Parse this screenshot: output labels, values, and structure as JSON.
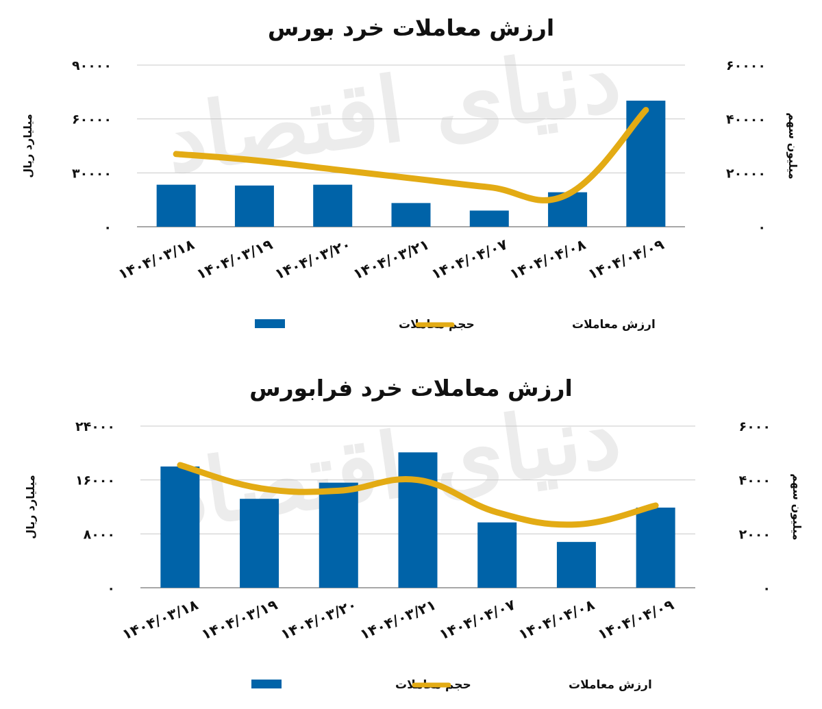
{
  "watermark": "دنیای اقتصاد",
  "chart_data": [
    {
      "type": "bar",
      "title": "ارزش معاملات خرد بورس",
      "categories": [
        "1404/03/18",
        "1404/03/19",
        "1404/03/20",
        "1404/03/21",
        "1404/04/07",
        "1404/04/08",
        "1404/04/09"
      ],
      "category_labels": [
        "۱۴۰۴/۰۳/۱۸",
        "۱۴۰۴/۰۳/۱۹",
        "۱۴۰۴/۰۳/۲۰",
        "۱۴۰۴/۰۳/۲۱",
        "۱۴۰۴/۰۴/۰۷",
        "۱۴۰۴/۰۴/۰۸",
        "۱۴۰۴/۰۴/۰۹"
      ],
      "series": [
        {
          "name": "حجم معاملات",
          "type": "bar",
          "axis": "right",
          "color": "#0063a8",
          "values": [
            15600,
            15300,
            15600,
            8800,
            6000,
            12800,
            46800
          ]
        },
        {
          "name": "ارزش معاملات",
          "type": "line",
          "smooth": true,
          "axis": "left",
          "color": "#e3ab14",
          "values": [
            40500,
            37000,
            32000,
            27000,
            22000,
            18000,
            65000
          ]
        }
      ],
      "ylabel_left": "میلیارد ریال",
      "ylabel_right": "میلیون سهم",
      "ylim_left": [
        0,
        90000
      ],
      "ylim_right": [
        0,
        60000
      ],
      "yticks_left": [
        0,
        30000,
        60000,
        90000
      ],
      "yticks_right": [
        0,
        20000,
        40000,
        60000
      ],
      "ytick_labels_left": [
        "۰",
        "۳۰۰۰۰",
        "۶۰۰۰۰",
        "۹۰۰۰۰"
      ],
      "ytick_labels_right": [
        "۰",
        "۲۰۰۰۰",
        "۴۰۰۰۰",
        "۶۰۰۰۰"
      ],
      "grid": true,
      "legend_position": "bottom"
    },
    {
      "type": "bar",
      "title": "ارزش معاملات خرد فرابورس",
      "categories": [
        "1404/03/18",
        "1404/03/19",
        "1404/03/20",
        "1404/03/21",
        "1404/04/07",
        "1404/04/08",
        "1404/04/09"
      ],
      "category_labels": [
        "۱۴۰۴/۰۳/۱۸",
        "۱۴۰۴/۰۳/۱۹",
        "۱۴۰۴/۰۳/۲۰",
        "۱۴۰۴/۰۳/۲۱",
        "۱۴۰۴/۰۴/۰۷",
        "۱۴۰۴/۰۴/۰۸",
        "۱۴۰۴/۰۴/۰۹"
      ],
      "series": [
        {
          "name": "حجم معاملات",
          "type": "bar",
          "axis": "left",
          "color": "#0063a8",
          "values": [
            18000,
            13200,
            15600,
            20100,
            9700,
            6800,
            11900
          ]
        },
        {
          "name": "ارزش معاملات",
          "type": "line",
          "smooth": true,
          "axis": "right",
          "color": "#e3ab14",
          "values": [
            4550,
            3700,
            3600,
            4000,
            2800,
            2350,
            3050
          ]
        }
      ],
      "ylabel_left": "میلیارد ریال",
      "ylabel_right": "میلیون سهم",
      "ylim_left": [
        0,
        24000
      ],
      "ylim_right": [
        0,
        6000
      ],
      "yticks_left": [
        0,
        8000,
        16000,
        24000
      ],
      "yticks_right": [
        0,
        2000,
        4000,
        6000
      ],
      "ytick_labels_left": [
        "۰",
        "۸۰۰۰",
        "۱۶۰۰۰",
        "۲۴۰۰۰"
      ],
      "ytick_labels_right": [
        "۰",
        "۲۰۰۰",
        "۴۰۰۰",
        "۶۰۰۰"
      ],
      "grid": true,
      "legend_position": "bottom"
    }
  ]
}
